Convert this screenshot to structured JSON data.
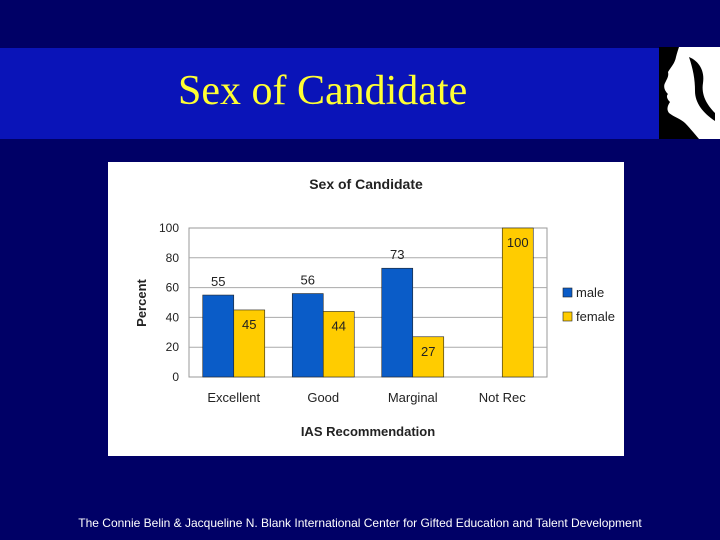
{
  "slide": {
    "title": "Sex of Candidate",
    "footer": "The Connie Belin & Jacqueline N. Blank International Center for Gifted Education and Talent Development"
  },
  "colors": {
    "background": "#000066",
    "title_band": "#0a14b8",
    "title_text": "#ffff33",
    "male": "#0a5cc8",
    "female": "#ffcc00"
  },
  "chart_data": {
    "type": "bar",
    "title": "Sex of Candidate",
    "xlabel": "IAS Recommendation",
    "ylabel": "Percent",
    "categories": [
      "Excellent",
      "Good",
      "Marginal",
      "Not Rec"
    ],
    "series": [
      {
        "name": "male",
        "values": [
          55,
          56,
          73,
          null
        ],
        "labels": [
          "55",
          "56",
          "73",
          ""
        ]
      },
      {
        "name": "female",
        "values": [
          45,
          44,
          27,
          100
        ],
        "labels": [
          "45",
          "44",
          "27",
          "100"
        ]
      }
    ],
    "ylim": [
      0,
      100
    ],
    "yticks": [
      "0",
      "20",
      "40",
      "60",
      "80",
      "100"
    ],
    "grid": true,
    "legend": "right"
  }
}
